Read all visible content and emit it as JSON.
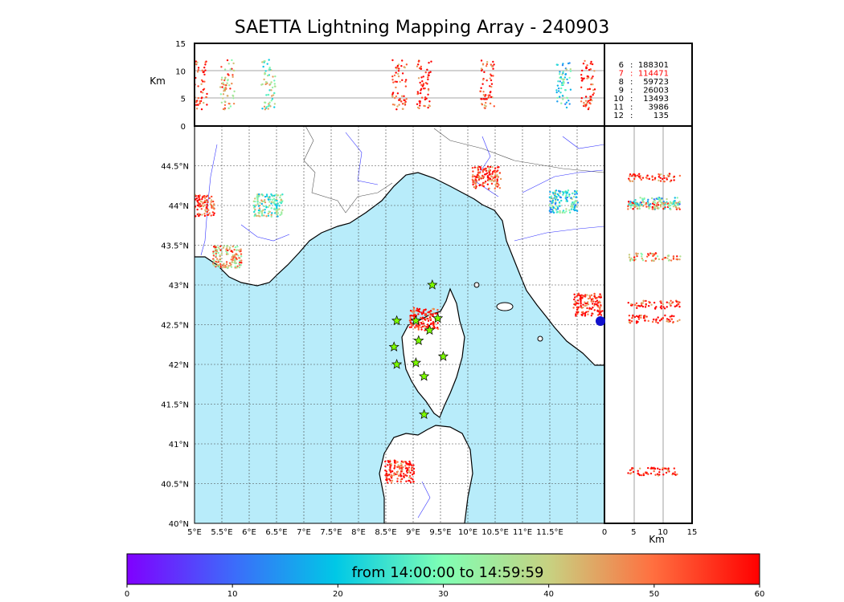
{
  "title": "SAETTA Lightning Mapping Array - 240903",
  "colorbar": {
    "label": "from 14:00:00 to 14:59:59",
    "ticks": [
      "0",
      "10",
      "20",
      "30",
      "40",
      "50",
      "60"
    ],
    "range": [
      0,
      60
    ]
  },
  "units": {
    "km_left": "Km",
    "km_bottom": "Km"
  },
  "legend": [
    {
      "station": "6",
      "count": "188301",
      "color": "#000000"
    },
    {
      "station": "7",
      "count": "114471",
      "color": "#ff0000"
    },
    {
      "station": "8",
      "count": "59723",
      "color": "#000000"
    },
    {
      "station": "9",
      "count": "26003",
      "color": "#000000"
    },
    {
      "station": "10",
      "count": "13493",
      "color": "#000000"
    },
    {
      "station": "11",
      "count": "3986",
      "color": "#000000"
    },
    {
      "station": "12",
      "count": "135",
      "color": "#000000"
    }
  ],
  "colors": {
    "sea": "#b8ecfa",
    "river": "#3333ff",
    "star": "#7cfc00",
    "source": "#1111cc"
  },
  "chart_data": [
    {
      "type": "scatter",
      "panel": "map",
      "xlabel": "",
      "ylabel": "",
      "xlim": [
        5,
        12.5
      ],
      "ylim": [
        40,
        45
      ],
      "xticks": [
        "5°E",
        "5.5°E",
        "6°E",
        "6.5°E",
        "7°E",
        "7.5°E",
        "8°E",
        "8.5°E",
        "9°E",
        "9.5°E",
        "10°E",
        "10.5°E",
        "11°E",
        "11.5°E"
      ],
      "yticks": [
        "40°N",
        "40.5°N",
        "41°N",
        "41.5°N",
        "42°N",
        "42.5°N",
        "43°N",
        "43.5°N",
        "44°N",
        "44.5°N"
      ],
      "grid": true,
      "clusters": [
        {
          "lon": 5.1,
          "lat": 44.0,
          "time_min": 57
        },
        {
          "lon": 5.6,
          "lat": 43.35,
          "time_min": 45
        },
        {
          "lon": 6.35,
          "lat": 44.0,
          "time_min": 32
        },
        {
          "lon": 9.2,
          "lat": 42.57,
          "time_min": 58
        },
        {
          "lon": 8.75,
          "lat": 40.65,
          "time_min": 56
        },
        {
          "lon": 10.35,
          "lat": 44.35,
          "time_min": 55
        },
        {
          "lon": 11.75,
          "lat": 44.05,
          "time_min": 25
        },
        {
          "lon": 12.2,
          "lat": 42.75,
          "time_min": 58
        }
      ],
      "stations": [
        {
          "lon": 9.35,
          "lat": 43.0
        },
        {
          "lon": 8.7,
          "lat": 42.55
        },
        {
          "lon": 9.05,
          "lat": 42.55
        },
        {
          "lon": 9.45,
          "lat": 42.58
        },
        {
          "lon": 9.3,
          "lat": 42.43
        },
        {
          "lon": 9.1,
          "lat": 42.3
        },
        {
          "lon": 8.65,
          "lat": 42.22
        },
        {
          "lon": 9.55,
          "lat": 42.1
        },
        {
          "lon": 8.7,
          "lat": 42.0
        },
        {
          "lon": 9.05,
          "lat": 42.02
        },
        {
          "lon": 9.2,
          "lat": 41.85
        },
        {
          "lon": 9.2,
          "lat": 41.37
        }
      ]
    },
    {
      "type": "scatter",
      "panel": "longitude-altitude",
      "xlim": [
        5,
        12.5
      ],
      "ylim": [
        0,
        15
      ],
      "yticks": [
        "0",
        "5",
        "10",
        "15"
      ],
      "ylabel": "Km"
    },
    {
      "type": "scatter",
      "panel": "altitude-latitude",
      "xlim": [
        0,
        15
      ],
      "ylim": [
        40,
        45
      ],
      "xticks": [
        "0",
        "5",
        "10",
        "15"
      ],
      "xlabel": "Km"
    }
  ]
}
